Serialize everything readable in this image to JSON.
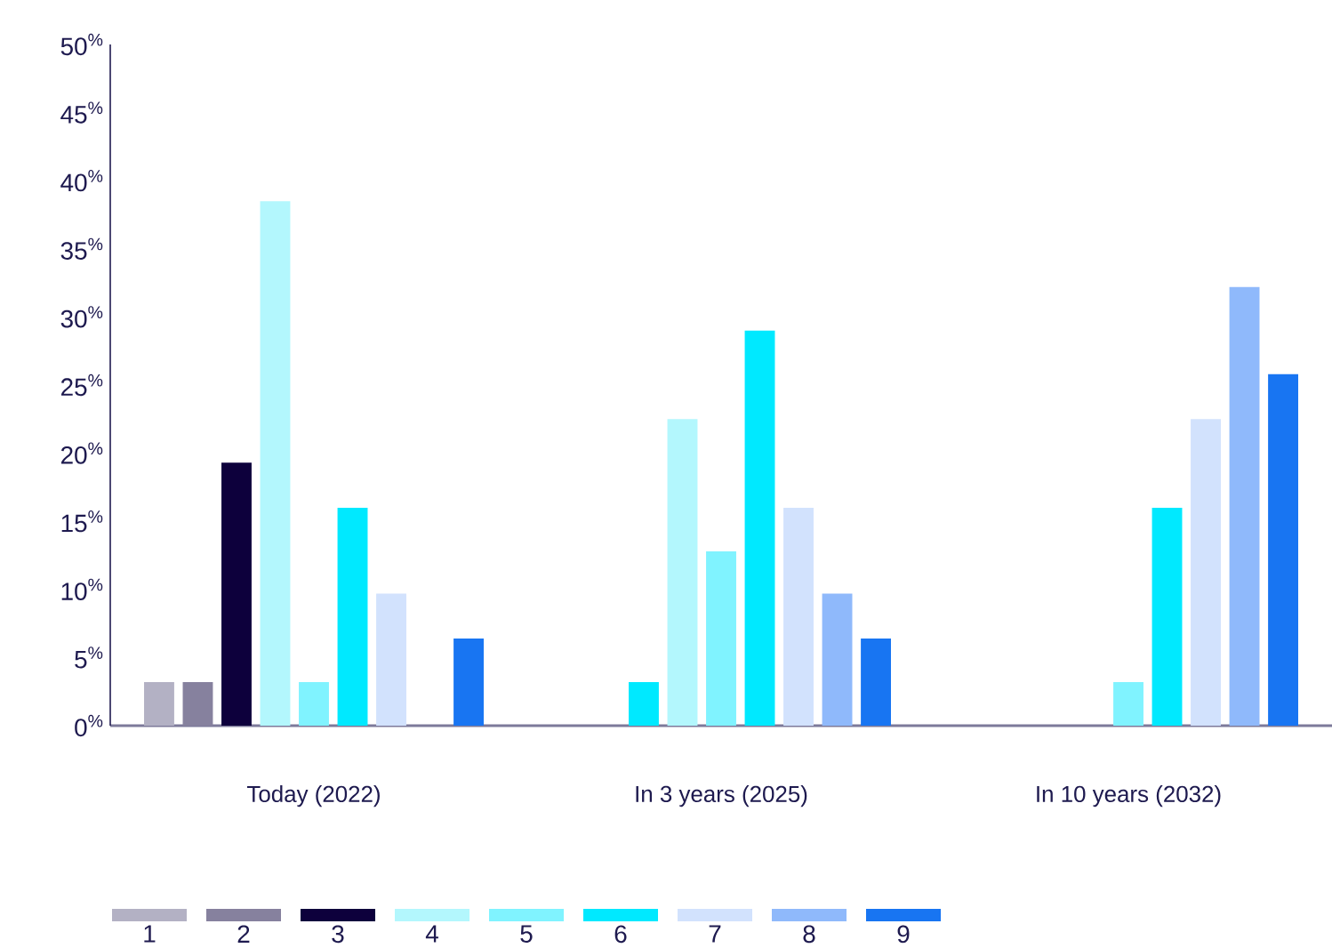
{
  "chart_data": {
    "type": "bar",
    "categories": [
      "Today (2022)",
      "In 3 years (2025)",
      "In 10 years (2032)"
    ],
    "series": [
      {
        "name": "1",
        "color": "#b3b1c4",
        "values": [
          3.2,
          0,
          0
        ]
      },
      {
        "name": "2",
        "color": "#86819e",
        "values": [
          3.2,
          0,
          0
        ]
      },
      {
        "name": "3",
        "color": "#0d003c",
        "colors": [
          "#0d003c",
          "#00e9ff",
          "#0d003c"
        ],
        "values": [
          19.3,
          3.2,
          0
        ]
      },
      {
        "name": "4",
        "color": "#b3f7fd",
        "values": [
          38.5,
          22.5,
          0
        ]
      },
      {
        "name": "5",
        "color": "#80f3ff",
        "values": [
          3.2,
          12.8,
          3.2
        ]
      },
      {
        "name": "6",
        "color": "#00e9ff",
        "values": [
          16,
          29,
          16
        ]
      },
      {
        "name": "7",
        "color": "#d2e2fd",
        "values": [
          9.7,
          16,
          22.5
        ]
      },
      {
        "name": "8",
        "color": "#8fb9fb",
        "values": [
          0,
          9.7,
          32.2
        ]
      },
      {
        "name": "9",
        "color": "#1875f2",
        "values": [
          6.4,
          6.4,
          25.8
        ]
      }
    ],
    "legend": "bottom",
    "ylim": [
      0,
      50
    ],
    "yticks": [
      {
        "value": 0,
        "label": "0$^{%}$"
      },
      {
        "value": 5,
        "label": "5$^{%}$"
      },
      {
        "value": 10,
        "label": "10$^{%}$"
      },
      {
        "value": 15,
        "label": "15$^{%}$"
      },
      {
        "value": 20,
        "label": "20$^{%}$"
      },
      {
        "value": 25,
        "label": "25$^{%}$"
      },
      {
        "value": 30,
        "label": "30$^{%}$"
      },
      {
        "value": 35,
        "label": "35$^{%}$"
      },
      {
        "value": 40,
        "label": "40$^{%}$"
      },
      {
        "value": 45,
        "label": "45$^{%}$"
      },
      {
        "value": 50,
        "label": "50$^{%}$"
      }
    ]
  }
}
